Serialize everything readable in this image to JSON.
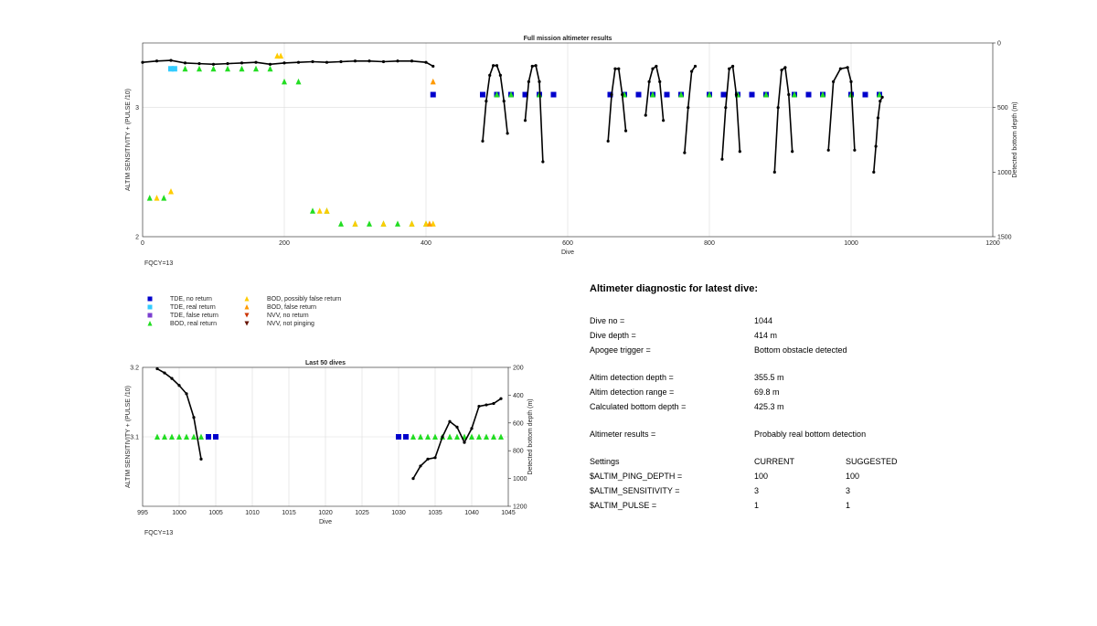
{
  "chart_data": [
    {
      "type": "scatter",
      "title": "Full mission altimeter results",
      "xlabel": "Dive",
      "ylabel": "ALTIM SENSITIVITY + (PULSE /10)",
      "ylabel_right": "Detected bottom depth (m)",
      "xlim": [
        0,
        1200
      ],
      "ylim": [
        2,
        3.5
      ],
      "ylim_right": [
        1500,
        0
      ],
      "xticks": [
        "0",
        "200",
        "400",
        "600",
        "800",
        "1000",
        "1200"
      ],
      "yticks": [
        "2",
        "3"
      ],
      "yticks_right": [
        "0",
        "500",
        "1000",
        "1500"
      ],
      "grid": true,
      "annotation": "FQCY=13",
      "bottom_depth_series": [
        {
          "name": "",
          "x": [
            0,
            20,
            40,
            60,
            80,
            100,
            120,
            140,
            160,
            180,
            200,
            220,
            240,
            260,
            280,
            300,
            320,
            340,
            360,
            380,
            400,
            410
          ],
          "y": [
            150,
            140,
            135,
            155,
            160,
            165,
            160,
            155,
            150,
            165,
            155,
            150,
            145,
            150,
            145,
            140,
            140,
            145,
            140,
            140,
            150,
            180
          ]
        },
        {
          "name": "",
          "x": [
            480,
            485,
            490,
            495,
            500,
            505,
            510,
            515
          ],
          "y": [
            760,
            450,
            250,
            175,
            175,
            250,
            450,
            700
          ]
        },
        {
          "name": "",
          "x": [
            540,
            545,
            550,
            555,
            560,
            565
          ],
          "y": [
            600,
            300,
            180,
            175,
            300,
            920
          ]
        },
        {
          "name": "",
          "x": [
            657,
            662,
            667,
            672,
            677,
            682
          ],
          "y": [
            760,
            400,
            200,
            200,
            400,
            680
          ]
        },
        {
          "name": "",
          "x": [
            710,
            715,
            720,
            725,
            730,
            735
          ],
          "y": [
            560,
            300,
            200,
            180,
            300,
            600
          ]
        },
        {
          "name": "",
          "x": [
            765,
            770,
            775,
            780
          ],
          "y": [
            850,
            500,
            220,
            180
          ]
        },
        {
          "name": "",
          "x": [
            818,
            823,
            828,
            833,
            838,
            843
          ],
          "y": [
            900,
            500,
            200,
            180,
            400,
            840
          ]
        },
        {
          "name": "",
          "x": [
            892,
            897,
            902,
            907,
            912,
            917
          ],
          "y": [
            1000,
            500,
            210,
            190,
            400,
            840
          ]
        },
        {
          "name": "",
          "x": [
            968,
            975,
            985,
            995,
            1000,
            1005
          ],
          "y": [
            830,
            300,
            200,
            190,
            300,
            830
          ]
        },
        {
          "name": "",
          "x": [
            1032,
            1035,
            1038,
            1041,
            1044
          ],
          "y": [
            1000,
            800,
            580,
            450,
            420
          ]
        }
      ],
      "markers": [
        {
          "name": "TDE, no return",
          "x": [
            410,
            480,
            500,
            520,
            540,
            560,
            580,
            660,
            680,
            700,
            720,
            740,
            760,
            800,
            820,
            840,
            860,
            880,
            920,
            940,
            960,
            1000,
            1020,
            1040
          ],
          "y": [
            3.1,
            3.1,
            3.1,
            3.1,
            3.1,
            3.1,
            3.1,
            3.1,
            3.1,
            3.1,
            3.1,
            3.1,
            3.1,
            3.1,
            3.1,
            3.1,
            3.1,
            3.1,
            3.1,
            3.1,
            3.1,
            3.1,
            3.1,
            3.1
          ]
        },
        {
          "name": "TDE, real return",
          "x": [
            40,
            45
          ],
          "y": [
            3.3,
            3.3
          ]
        },
        {
          "name": "BOD, real return",
          "x": [
            10,
            30,
            60,
            80,
            100,
            120,
            140,
            160,
            180,
            200,
            220,
            240,
            260,
            280,
            300,
            320,
            340,
            360,
            380,
            400,
            500,
            520,
            560,
            680,
            720,
            760,
            800,
            840,
            880,
            920,
            960,
            1000,
            1040
          ],
          "y": [
            2.3,
            2.3,
            3.3,
            3.3,
            3.3,
            3.3,
            3.3,
            3.3,
            3.3,
            3.2,
            3.2,
            2.2,
            2.2,
            2.1,
            2.1,
            2.1,
            2.1,
            2.1,
            2.1,
            2.1,
            3.1,
            3.1,
            3.1,
            3.1,
            3.1,
            3.1,
            3.1,
            3.1,
            3.1,
            3.1,
            3.1,
            3.1,
            3.1
          ]
        },
        {
          "name": "BOD, possibly false return",
          "x": [
            20,
            40,
            190,
            195,
            250,
            260,
            300,
            340,
            380,
            400,
            410
          ],
          "y": [
            2.3,
            2.35,
            3.4,
            3.4,
            2.2,
            2.2,
            2.1,
            2.1,
            2.1,
            2.1,
            2.1
          ]
        },
        {
          "name": "BOD, false return",
          "x": [
            410,
            405
          ],
          "y": [
            3.2,
            2.1
          ]
        }
      ]
    },
    {
      "type": "scatter",
      "title": "Last 50 dives",
      "xlabel": "Dive",
      "ylabel": "ALTIM SENSITIVITY + (PULSE /10)",
      "ylabel_right": "Detected bottom depth (m)",
      "xlim": [
        995,
        1045
      ],
      "ylim": [
        3.0,
        3.2
      ],
      "ylim_right": [
        1200,
        200
      ],
      "xticks": [
        "995",
        "1000",
        "1005",
        "1010",
        "1015",
        "1020",
        "1025",
        "1030",
        "1035",
        "1040",
        "1045"
      ],
      "yticks": [
        "3.1",
        "3.2"
      ],
      "yticks_right": [
        "200",
        "400",
        "600",
        "800",
        "1000",
        "1200"
      ],
      "grid": true,
      "annotation": "FQCY=13",
      "bottom_depth_series": [
        {
          "name": "",
          "x": [
            997,
            998,
            999,
            1000,
            1001,
            1002,
            1003
          ],
          "y": [
            210,
            240,
            280,
            330,
            390,
            560,
            860
          ]
        },
        {
          "name": "",
          "x": [
            1032,
            1033,
            1034,
            1035,
            1036,
            1037,
            1038,
            1039,
            1040,
            1041,
            1042,
            1043,
            1044
          ],
          "y": [
            1000,
            910,
            860,
            850,
            700,
            590,
            630,
            740,
            640,
            480,
            470,
            460,
            425
          ]
        }
      ],
      "markers": [
        {
          "name": "TDE, no return",
          "x": [
            1004,
            1005,
            1030,
            1031
          ],
          "y": [
            3.1,
            3.1,
            3.1,
            3.1
          ]
        },
        {
          "name": "BOD, real return",
          "x": [
            997,
            998,
            999,
            1000,
            1001,
            1002,
            1003,
            1032,
            1033,
            1034,
            1035,
            1036,
            1037,
            1038,
            1039,
            1040,
            1041,
            1042,
            1043,
            1044
          ],
          "y": [
            3.1,
            3.1,
            3.1,
            3.1,
            3.1,
            3.1,
            3.1,
            3.1,
            3.1,
            3.1,
            3.1,
            3.1,
            3.1,
            3.1,
            3.1,
            3.1,
            3.1,
            3.1,
            3.1,
            3.1
          ]
        }
      ]
    }
  ],
  "legend": {
    "col1": [
      {
        "label": "TDE, no return",
        "color": "#0000cc",
        "shape": "square"
      },
      {
        "label": "TDE, real return",
        "color": "#33ccff",
        "shape": "square"
      },
      {
        "label": "TDE, false return",
        "color": "#7b3fd0",
        "shape": "square"
      },
      {
        "label": "BOD, real return",
        "color": "#22dd22",
        "shape": "triangle-up"
      }
    ],
    "col2": [
      {
        "label": "BOD, possibly false return",
        "color": "#ffcc00",
        "shape": "triangle-up"
      },
      {
        "label": "BOD, false return",
        "color": "#ff9900",
        "shape": "triangle-up"
      },
      {
        "label": "NVV, no return",
        "color": "#cc3300",
        "shape": "triangle-down"
      },
      {
        "label": "NVV, not pinging",
        "color": "#661100",
        "shape": "triangle-down"
      }
    ]
  },
  "diagnostic": {
    "title": "Altimeter diagnostic for latest dive:",
    "dive_no_label": "Dive no =",
    "dive_no": "1044",
    "dive_depth_label": "Dive depth =",
    "dive_depth": "414 m",
    "apogee_label": "Apogee trigger =",
    "apogee": "Bottom obstacle detected",
    "detect_depth_label": "Altim detection depth =",
    "detect_depth": "355.5 m",
    "detect_range_label": "Altim detection range =",
    "detect_range": "69.8 m",
    "calc_depth_label": "Calculated bottom depth =",
    "calc_depth": "425.3 m",
    "results_label": "Altimeter results =",
    "results": "Probably real bottom detection",
    "settings_label": "Settings",
    "current_label": "CURRENT",
    "suggested_label": "SUGGESTED",
    "ping_label": "$ALTIM_PING_DEPTH =",
    "ping_current": "100",
    "ping_suggested": "100",
    "sens_label": "$ALTIM_SENSITIVITY =",
    "sens_current": "3",
    "sens_suggested": "3",
    "pulse_label": "$ALTIM_PULSE =",
    "pulse_current": "1",
    "pulse_suggested": "1"
  },
  "colors": {
    "axis_label_left": "#0000cc",
    "series_line": "#000000",
    "fqcy": "#999999"
  }
}
